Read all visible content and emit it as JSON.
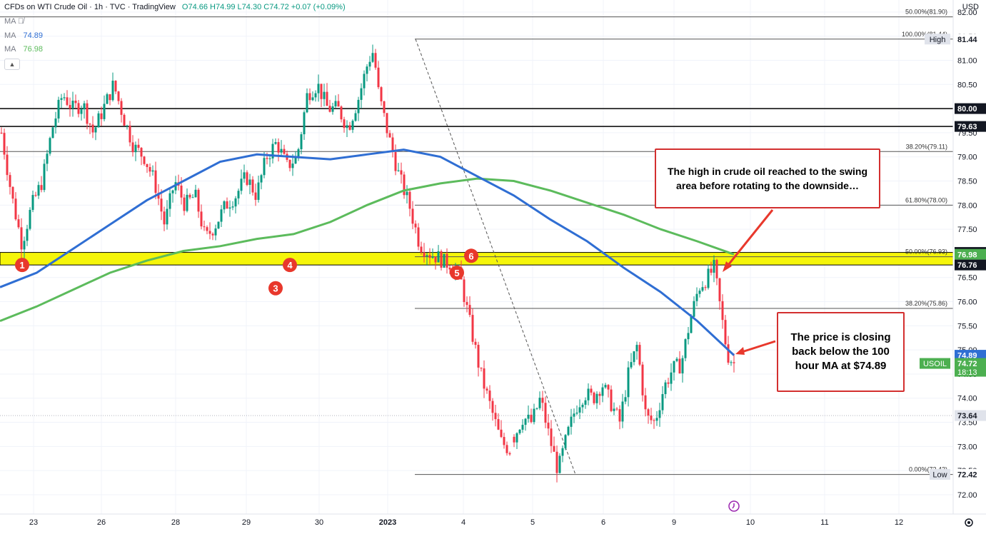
{
  "header": {
    "title": "CFDs on WTI Crude Oil · 1h · TVC · TradingView",
    "ohlc": "O74.66 H74.99 L74.30 C74.72 +0.07 (+0.09%)"
  },
  "indicators": [
    {
      "label": "MA",
      "value": "",
      "color": "#787b86"
    },
    {
      "label": "MA",
      "value": "74.89",
      "color": "#2f6ed3"
    },
    {
      "label": "MA",
      "value": "76.98",
      "color": "#5cbb5c"
    }
  ],
  "currency": "USD",
  "annotations": {
    "top": "The high in crude oil reached to the swing area before rotating to the downside…",
    "right": "The price is closing back below the 100 hour MA at $74.89"
  },
  "colors": {
    "up": "#089981",
    "down": "#f23645",
    "ma100": "#2f6ed3",
    "ma200": "#5cbb5c",
    "swing_zone": "#f5f50a",
    "marker": "#e8382c"
  },
  "chart_data": {
    "type": "candlestick",
    "ylim": [
      71.6,
      82.25
    ],
    "x_ticks": [
      "23",
      "26",
      "28",
      "29",
      "30",
      "2023",
      "4",
      "5",
      "6",
      "9",
      "10",
      "11",
      "12"
    ],
    "y_ticks": [
      "72.00",
      "72.50",
      "73.00",
      "73.50",
      "74.00",
      "74.50",
      "75.00",
      "75.50",
      "76.00",
      "76.50",
      "77.00",
      "77.50",
      "78.00",
      "78.50",
      "79.00",
      "79.50",
      "80.00",
      "80.50",
      "81.00",
      "81.50",
      "82.00"
    ],
    "horizontal_lines": [
      {
        "price": 80.0,
        "label": "80.00"
      },
      {
        "price": 79.63,
        "label": "79.63"
      }
    ],
    "swing_zone": {
      "from": 76.76,
      "to": 77.02
    },
    "fib_upper": [
      {
        "price": 81.9,
        "label": "50.00%(81.90)"
      },
      {
        "price": 79.11,
        "label": "38.20%(79.11)"
      }
    ],
    "fib_lower": [
      {
        "price": 81.44,
        "label": "100.00%(81.44)"
      },
      {
        "price": 78.0,
        "label": "61.80%(78.00)"
      },
      {
        "price": 76.93,
        "label": "50.00%(76.93)"
      },
      {
        "price": 75.86,
        "label": "38.20%(75.86)"
      },
      {
        "price": 72.42,
        "label": "0.00%(72.42)"
      }
    ],
    "axis_labels": [
      {
        "price": 81.44,
        "text": "81.44",
        "tag": "High",
        "style": "plain"
      },
      {
        "price": 80.0,
        "text": "80.00",
        "style": "black"
      },
      {
        "price": 79.63,
        "text": "79.63",
        "style": "black"
      },
      {
        "price": 77.02,
        "text": "77.02",
        "style": "black"
      },
      {
        "price": 76.98,
        "text": "76.98",
        "style": "green"
      },
      {
        "price": 76.76,
        "text": "76.76",
        "style": "black"
      },
      {
        "price": 74.89,
        "text": "74.89",
        "style": "blue"
      },
      {
        "price": 74.72,
        "text": "74.72",
        "sub": "18:13",
        "tag": "USOIL",
        "style": "green"
      },
      {
        "price": 73.64,
        "text": "73.64",
        "style": "gray"
      },
      {
        "price": 72.42,
        "text": "72.42",
        "tag": "Low",
        "style": "plain"
      }
    ],
    "markers": [
      {
        "label": "1",
        "price": 76.76
      },
      {
        "label": "3",
        "price": 76.5
      },
      {
        "label": "4",
        "price": 76.76
      },
      {
        "label": "5",
        "price": 76.6
      },
      {
        "label": "6",
        "price": 76.95
      }
    ],
    "ma100": [
      [
        0,
        76.3
      ],
      [
        0.05,
        76.6
      ],
      [
        0.1,
        77.1
      ],
      [
        0.15,
        77.6
      ],
      [
        0.2,
        78.1
      ],
      [
        0.25,
        78.5
      ],
      [
        0.3,
        78.9
      ],
      [
        0.35,
        79.05
      ],
      [
        0.4,
        79.0
      ],
      [
        0.45,
        78.95
      ],
      [
        0.5,
        79.05
      ],
      [
        0.55,
        79.15
      ],
      [
        0.6,
        79.0
      ],
      [
        0.65,
        78.6
      ],
      [
        0.7,
        78.2
      ],
      [
        0.75,
        77.7
      ],
      [
        0.8,
        77.25
      ],
      [
        0.85,
        76.7
      ],
      [
        0.9,
        76.2
      ],
      [
        0.95,
        75.6
      ],
      [
        1.0,
        74.89
      ]
    ],
    "ma200": [
      [
        0,
        75.6
      ],
      [
        0.05,
        75.9
      ],
      [
        0.1,
        76.25
      ],
      [
        0.15,
        76.6
      ],
      [
        0.2,
        76.85
      ],
      [
        0.25,
        77.05
      ],
      [
        0.3,
        77.15
      ],
      [
        0.35,
        77.3
      ],
      [
        0.4,
        77.4
      ],
      [
        0.45,
        77.65
      ],
      [
        0.5,
        78.0
      ],
      [
        0.55,
        78.3
      ],
      [
        0.6,
        78.45
      ],
      [
        0.65,
        78.55
      ],
      [
        0.7,
        78.5
      ],
      [
        0.75,
        78.3
      ],
      [
        0.8,
        78.05
      ],
      [
        0.85,
        77.8
      ],
      [
        0.9,
        77.5
      ],
      [
        0.95,
        77.25
      ],
      [
        1.0,
        76.98
      ]
    ],
    "price_path": [
      [
        0,
        79.5
      ],
      [
        0.02,
        78.2
      ],
      [
        0.04,
        77.2
      ],
      [
        0.06,
        78.0
      ],
      [
        0.08,
        78.5
      ],
      [
        0.1,
        79.6
      ],
      [
        0.12,
        80.3
      ],
      [
        0.14,
        80.0
      ],
      [
        0.16,
        80.1
      ],
      [
        0.18,
        79.5
      ],
      [
        0.2,
        80.0
      ],
      [
        0.22,
        80.5
      ],
      [
        0.24,
        79.8
      ],
      [
        0.26,
        79.2
      ],
      [
        0.28,
        79.0
      ],
      [
        0.3,
        78.5
      ],
      [
        0.32,
        77.6
      ],
      [
        0.34,
        78.5
      ],
      [
        0.36,
        78.0
      ],
      [
        0.38,
        78.2
      ],
      [
        0.4,
        77.3
      ],
      [
        0.42,
        77.6
      ],
      [
        0.44,
        78.0
      ],
      [
        0.46,
        78.2
      ],
      [
        0.48,
        78.6
      ],
      [
        0.5,
        78.2
      ],
      [
        0.52,
        79.0
      ],
      [
        0.54,
        79.3
      ],
      [
        0.56,
        78.8
      ],
      [
        0.58,
        79.0
      ],
      [
        0.6,
        80.3
      ],
      [
        0.62,
        80.5
      ],
      [
        0.64,
        80.0
      ],
      [
        0.66,
        80.0
      ],
      [
        0.68,
        79.6
      ],
      [
        0.7,
        80.2
      ],
      [
        0.72,
        81.0
      ],
      [
        0.73,
        81.2
      ],
      [
        0.74,
        80.3
      ],
      [
        0.76,
        79.4
      ],
      [
        0.78,
        78.6
      ],
      [
        0.8,
        78.0
      ],
      [
        0.82,
        77.2
      ],
      [
        0.84,
        77.0
      ],
      [
        0.86,
        76.9
      ],
      [
        0.87,
        76.8
      ],
      [
        0.88,
        76.8
      ],
      [
        0.9,
        76.5
      ],
      [
        0.92,
        75.5
      ],
      [
        0.94,
        74.5
      ],
      [
        0.96,
        73.8
      ],
      [
        0.98,
        73.1
      ],
      [
        1.0,
        72.9
      ]
    ],
    "price_path2": [
      [
        0,
        73.2
      ],
      [
        0.04,
        73.6
      ],
      [
        0.08,
        73.5
      ],
      [
        0.12,
        74.0
      ],
      [
        0.16,
        73.2
      ],
      [
        0.2,
        72.5
      ],
      [
        0.24,
        73.2
      ],
      [
        0.28,
        73.8
      ],
      [
        0.32,
        74.1
      ],
      [
        0.36,
        74.0
      ],
      [
        0.4,
        74.3
      ],
      [
        0.44,
        73.9
      ],
      [
        0.48,
        73.5
      ],
      [
        0.52,
        74.5
      ],
      [
        0.56,
        75.1
      ],
      [
        0.6,
        73.6
      ],
      [
        0.64,
        73.5
      ],
      [
        0.68,
        74.2
      ],
      [
        0.72,
        74.6
      ],
      [
        0.76,
        74.7
      ],
      [
        0.8,
        75.6
      ],
      [
        0.84,
        76.3
      ],
      [
        0.88,
        76.5
      ],
      [
        0.91,
        76.7
      ],
      [
        0.94,
        75.8
      ],
      [
        0.97,
        74.9
      ],
      [
        1.0,
        74.72
      ]
    ]
  }
}
